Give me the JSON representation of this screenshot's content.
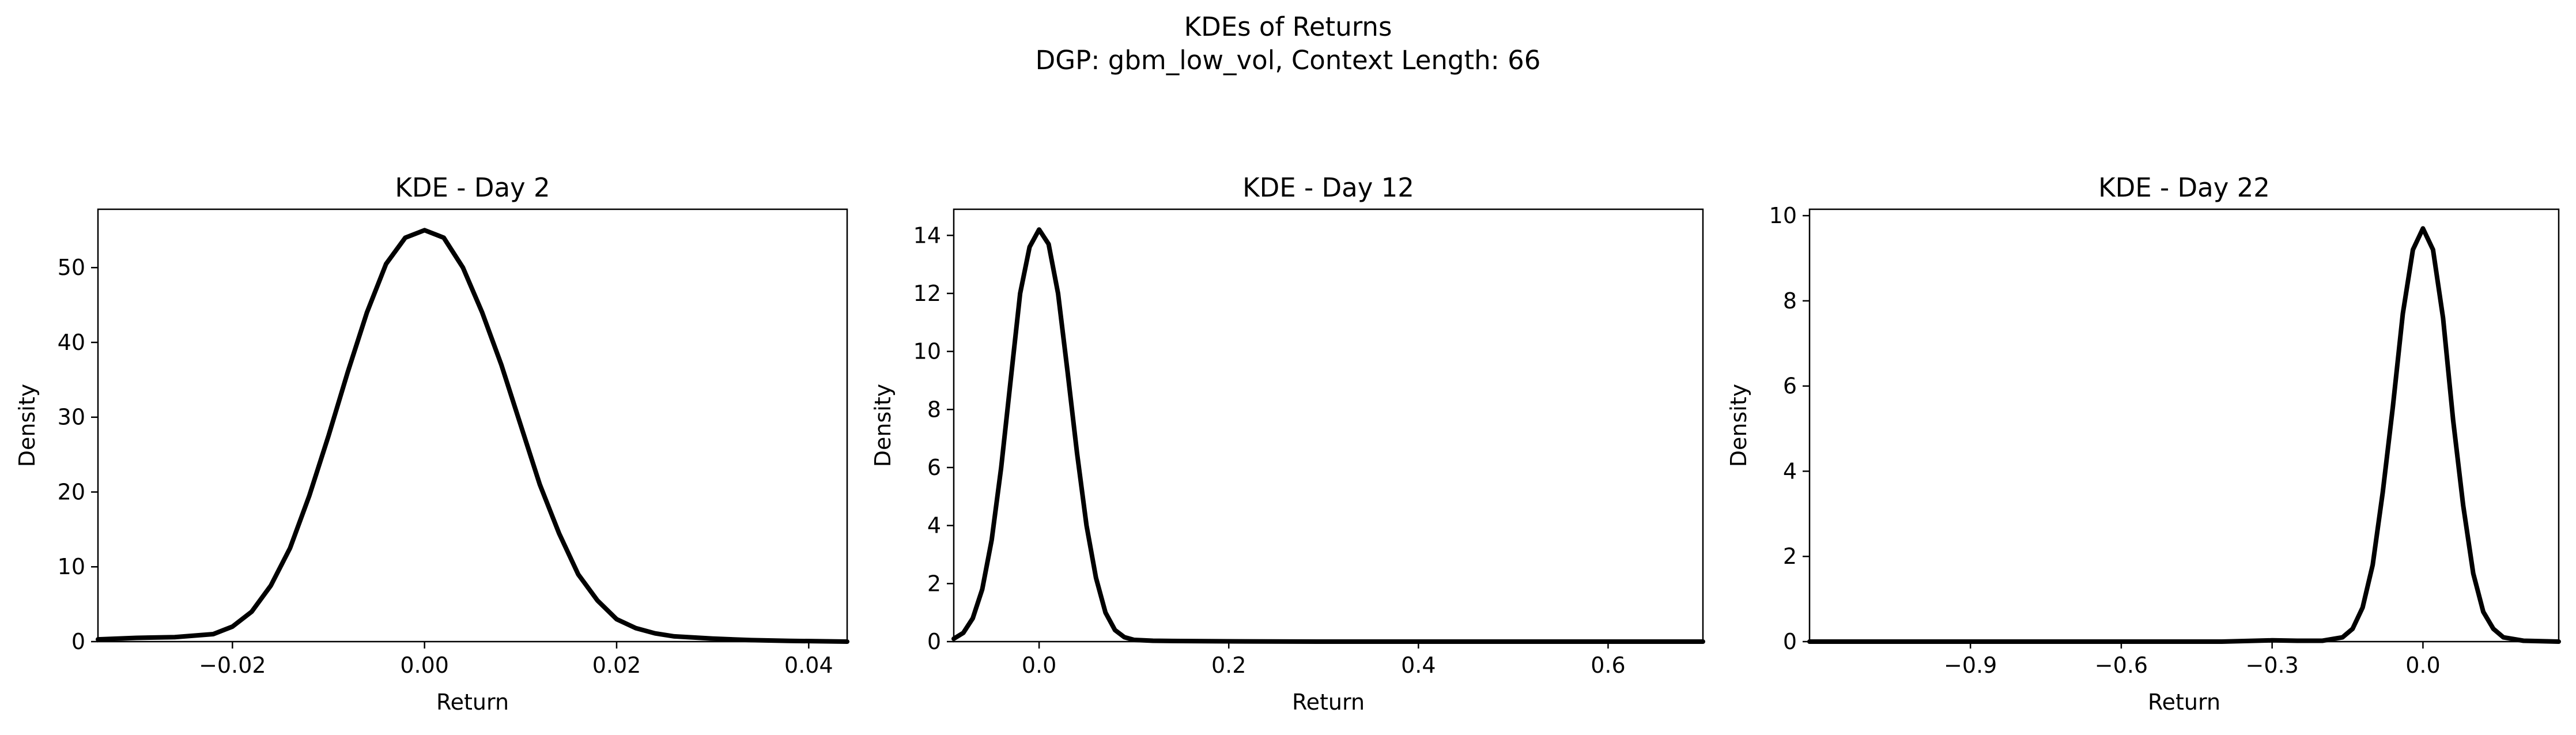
{
  "figure": {
    "suptitle_line1": "KDEs of Returns",
    "suptitle_line2": "DGP: gbm_low_vol, Context Length: 66"
  },
  "chart_data": [
    {
      "type": "line",
      "title": "KDE - Day 2",
      "xlabel": "Return",
      "ylabel": "Density",
      "xlim": [
        -0.034,
        0.044
      ],
      "ylim": [
        0,
        57.8
      ],
      "xticks": [
        -0.02,
        0.0,
        0.02,
        0.04
      ],
      "xtick_labels": [
        "−0.02",
        "0.00",
        "0.02",
        "0.04"
      ],
      "yticks": [
        0,
        10,
        20,
        30,
        40,
        50
      ],
      "ytick_labels": [
        "0",
        "10",
        "20",
        "30",
        "40",
        "50"
      ],
      "grid": false,
      "line_color": "#000000",
      "x": [
        -0.034,
        -0.03,
        -0.026,
        -0.024,
        -0.022,
        -0.02,
        -0.018,
        -0.016,
        -0.014,
        -0.012,
        -0.01,
        -0.008,
        -0.006,
        -0.004,
        -0.002,
        0.0,
        0.002,
        0.004,
        0.006,
        0.008,
        0.01,
        0.012,
        0.014,
        0.016,
        0.018,
        0.02,
        0.022,
        0.024,
        0.026,
        0.03,
        0.034,
        0.038,
        0.044
      ],
      "y": [
        0.3,
        0.5,
        0.6,
        0.8,
        1.0,
        2.0,
        4.0,
        7.5,
        12.5,
        19.5,
        27.5,
        36.0,
        44.0,
        50.5,
        54.0,
        55.0,
        54.0,
        50.0,
        44.0,
        37.0,
        29.0,
        21.0,
        14.5,
        9.0,
        5.5,
        3.0,
        1.8,
        1.1,
        0.7,
        0.4,
        0.2,
        0.1,
        0.0
      ]
    },
    {
      "type": "line",
      "title": "KDE - Day 12",
      "xlabel": "Return",
      "ylabel": "Density",
      "xlim": [
        -0.09,
        0.7
      ],
      "ylim": [
        0,
        14.9
      ],
      "xticks": [
        0.0,
        0.2,
        0.4,
        0.6
      ],
      "xtick_labels": [
        "0.0",
        "0.2",
        "0.4",
        "0.6"
      ],
      "yticks": [
        0,
        2,
        4,
        6,
        8,
        10,
        12,
        14
      ],
      "ytick_labels": [
        "0",
        "2",
        "4",
        "6",
        "8",
        "10",
        "12",
        "14"
      ],
      "grid": false,
      "line_color": "#000000",
      "x": [
        -0.09,
        -0.08,
        -0.07,
        -0.06,
        -0.05,
        -0.04,
        -0.03,
        -0.02,
        -0.01,
        0.0,
        0.01,
        0.02,
        0.03,
        0.04,
        0.05,
        0.06,
        0.07,
        0.08,
        0.09,
        0.1,
        0.12,
        0.15,
        0.2,
        0.3,
        0.4,
        0.5,
        0.6,
        0.7
      ],
      "y": [
        0.1,
        0.3,
        0.8,
        1.8,
        3.5,
        6.0,
        9.0,
        12.0,
        13.6,
        14.2,
        13.7,
        12.0,
        9.3,
        6.5,
        4.0,
        2.2,
        1.0,
        0.4,
        0.15,
        0.06,
        0.03,
        0.02,
        0.01,
        0.0,
        0.0,
        0.0,
        0.0,
        0.0
      ]
    },
    {
      "type": "line",
      "title": "KDE - Day 22",
      "xlabel": "Return",
      "ylabel": "Density",
      "xlim": [
        -1.22,
        0.27
      ],
      "ylim": [
        0,
        10.15
      ],
      "xticks": [
        -0.9,
        -0.6,
        -0.3,
        0.0
      ],
      "xtick_labels": [
        "−0.9",
        "−0.6",
        "−0.3",
        "0.0"
      ],
      "yticks": [
        0,
        2,
        4,
        6,
        8,
        10
      ],
      "ytick_labels": [
        "0",
        "2",
        "4",
        "6",
        "8",
        "10"
      ],
      "grid": false,
      "line_color": "#000000",
      "x": [
        -1.22,
        -1.0,
        -0.8,
        -0.6,
        -0.4,
        -0.3,
        -0.25,
        -0.2,
        -0.16,
        -0.14,
        -0.12,
        -0.1,
        -0.08,
        -0.06,
        -0.04,
        -0.02,
        0.0,
        0.02,
        0.04,
        0.06,
        0.08,
        0.1,
        0.12,
        0.14,
        0.16,
        0.2,
        0.27
      ],
      "y": [
        0.0,
        0.0,
        0.0,
        0.0,
        0.0,
        0.03,
        0.02,
        0.02,
        0.1,
        0.3,
        0.8,
        1.8,
        3.5,
        5.5,
        7.7,
        9.2,
        9.7,
        9.2,
        7.6,
        5.2,
        3.2,
        1.6,
        0.7,
        0.3,
        0.1,
        0.02,
        0.0
      ]
    }
  ]
}
